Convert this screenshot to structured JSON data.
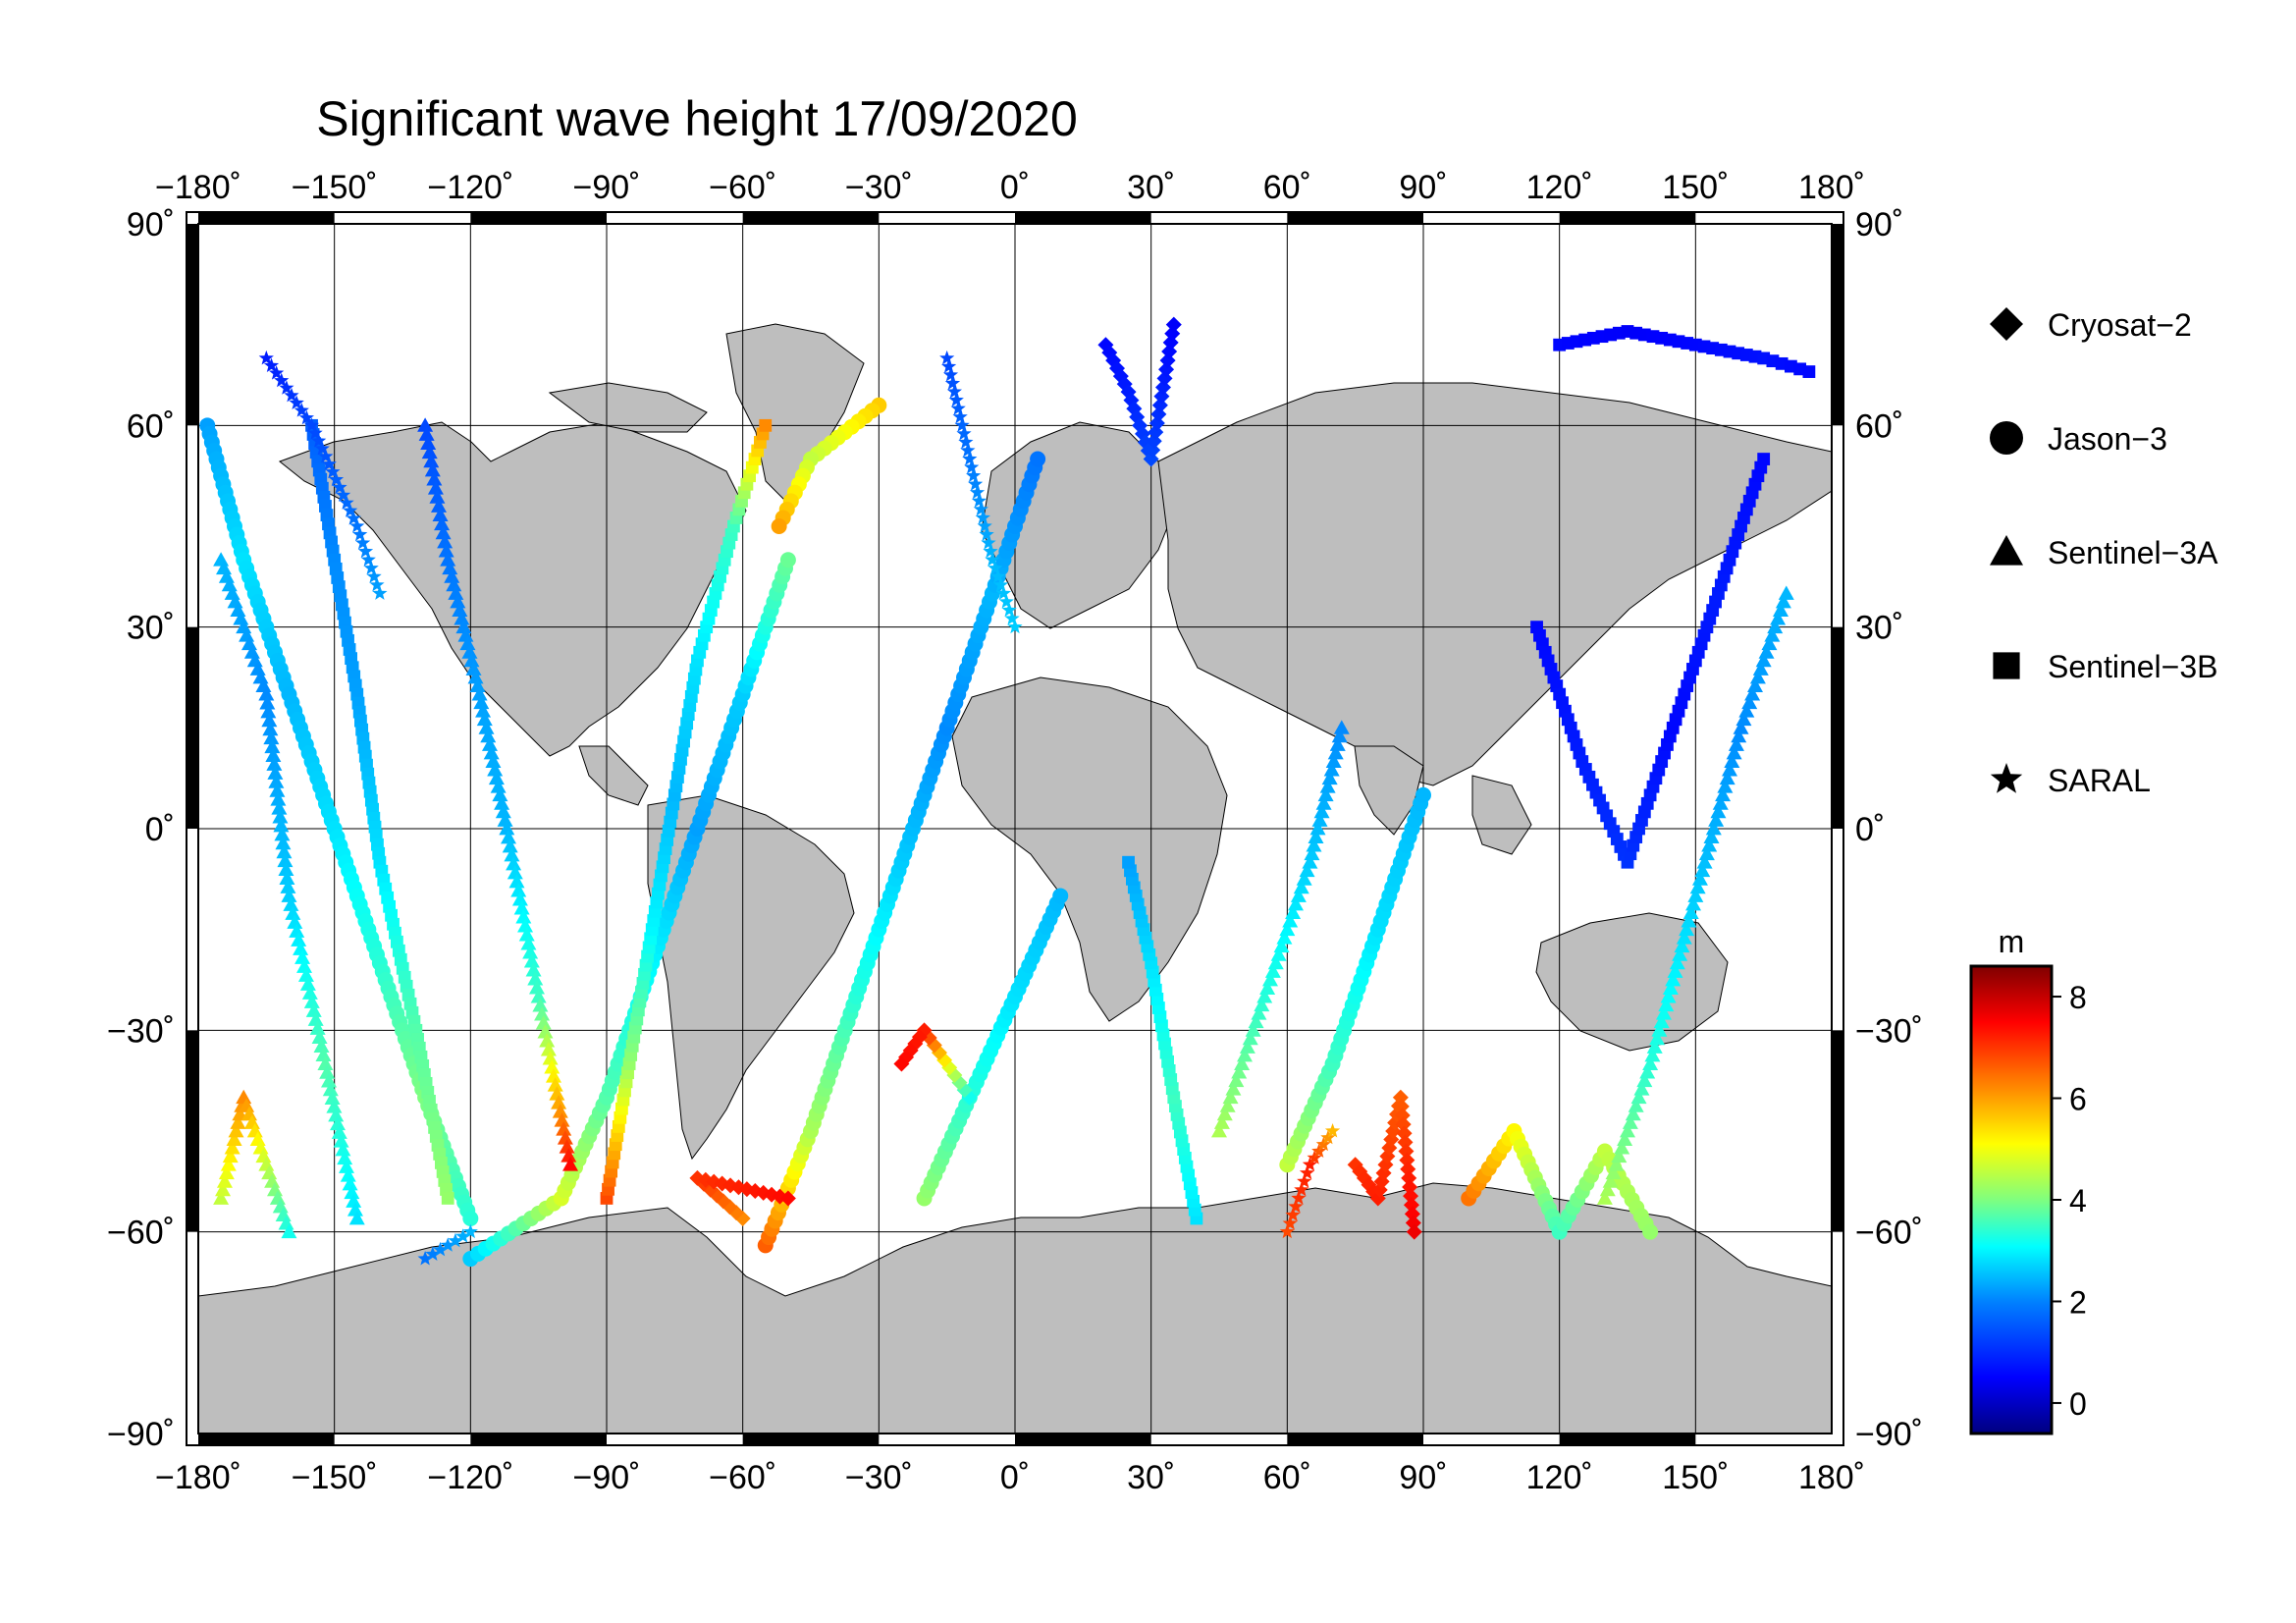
{
  "title": "Significant wave height 17/09/2020",
  "map": {
    "lon_ticks": [
      {
        "value": -180,
        "label": "−180˚"
      },
      {
        "value": -150,
        "label": "−150˚"
      },
      {
        "value": -120,
        "label": "−120˚"
      },
      {
        "value": -90,
        "label": "−90˚"
      },
      {
        "value": -60,
        "label": "−60˚"
      },
      {
        "value": -30,
        "label": "−30˚"
      },
      {
        "value": 0,
        "label": "0˚"
      },
      {
        "value": 30,
        "label": "30˚"
      },
      {
        "value": 60,
        "label": "60˚"
      },
      {
        "value": 90,
        "label": "90˚"
      },
      {
        "value": 120,
        "label": "120˚"
      },
      {
        "value": 150,
        "label": "150˚"
      },
      {
        "value": 180,
        "label": "180˚"
      }
    ],
    "lat_ticks": [
      {
        "value": 90,
        "left": "90˚",
        "right": "90˚"
      },
      {
        "value": 60,
        "left": "60˚",
        "right": "60˚"
      },
      {
        "value": 30,
        "left": "30˚",
        "right": "30˚"
      },
      {
        "value": 0,
        "left": "0˚",
        "right": "0˚"
      },
      {
        "value": -30,
        "left": "−30˚",
        "right": "−30˚"
      },
      {
        "value": -60,
        "left": "−60˚",
        "right": "−60˚"
      },
      {
        "value": -90,
        "left": "−90˚",
        "right": "−90˚"
      }
    ],
    "land_color": "#bebebe",
    "ocean_color": "#ffffff"
  },
  "legend": {
    "items": [
      {
        "label": "Cryosat−2",
        "symbol": "diamond"
      },
      {
        "label": "Jason−3",
        "symbol": "circle"
      },
      {
        "label": "Sentinel−3A",
        "symbol": "triangle"
      },
      {
        "label": "Sentinel−3B",
        "symbol": "square"
      },
      {
        "label": "SARAL",
        "symbol": "star"
      }
    ]
  },
  "colorbar": {
    "unit": "m",
    "min": -0.6,
    "max": 8.6,
    "ticks": [
      {
        "value": 0,
        "label": "0"
      },
      {
        "value": 2,
        "label": "2"
      },
      {
        "value": 4,
        "label": "4"
      },
      {
        "value": 6,
        "label": "6"
      },
      {
        "value": 8,
        "label": "8"
      }
    ],
    "colormap": [
      "#00007f",
      "#0000ff",
      "#007fff",
      "#00ffff",
      "#7fff7f",
      "#ffff00",
      "#ff7f00",
      "#ff0000",
      "#7f0000"
    ]
  },
  "chart_data": {
    "type": "scatter",
    "title": "Significant wave height 17/09/2020",
    "xlim": [
      -180,
      180
    ],
    "ylim": [
      -90,
      90
    ],
    "value_unit": "m",
    "tracks": [
      {
        "satellite": "Jason−3",
        "points": [
          [
            -178,
            60,
            2.0
          ],
          [
            -170,
            40,
            2.6
          ],
          [
            -160,
            20,
            2.2
          ],
          [
            -150,
            0,
            2.6
          ],
          [
            -140,
            -20,
            3.2
          ],
          [
            -130,
            -40,
            4.0
          ],
          [
            -120,
            -58,
            3.2
          ]
        ]
      },
      {
        "satellite": "Jason−3",
        "points": [
          [
            -120,
            -64,
            2.4
          ],
          [
            -100,
            -55,
            4.8
          ],
          [
            -90,
            -40,
            3.6
          ],
          [
            -80,
            -20,
            2.8
          ],
          [
            -70,
            0,
            2.0
          ],
          [
            -60,
            20,
            2.4
          ],
          [
            -50,
            40,
            3.8
          ]
        ]
      },
      {
        "satellite": "Jason−3",
        "points": [
          [
            -55,
            -62,
            6.6
          ],
          [
            -45,
            -45,
            4.4
          ],
          [
            -35,
            -25,
            3.2
          ],
          [
            -25,
            -5,
            2.4
          ],
          [
            -15,
            15,
            1.8
          ],
          [
            -5,
            35,
            2.2
          ],
          [
            5,
            55,
            1.6
          ]
        ]
      },
      {
        "satellite": "Jason−3",
        "points": [
          [
            -30,
            63,
            5.6
          ],
          [
            -45,
            55,
            4.6
          ],
          [
            -52,
            45,
            6.0
          ]
        ]
      },
      {
        "satellite": "Jason−3",
        "points": [
          [
            -20,
            -55,
            4.2
          ],
          [
            -10,
            -40,
            3.2
          ],
          [
            0,
            -25,
            2.6
          ],
          [
            10,
            -10,
            2.2
          ]
        ]
      },
      {
        "satellite": "Jason−3",
        "points": [
          [
            60,
            -50,
            4.6
          ],
          [
            70,
            -35,
            3.4
          ],
          [
            80,
            -15,
            2.6
          ],
          [
            90,
            5,
            2.2
          ]
        ]
      },
      {
        "satellite": "Jason−3",
        "points": [
          [
            100,
            -55,
            6.4
          ],
          [
            110,
            -45,
            5.2
          ],
          [
            120,
            -60,
            3.4
          ],
          [
            130,
            -48,
            4.6
          ],
          [
            140,
            -60,
            4.2
          ]
        ]
      },
      {
        "satellite": "Sentinel−3A",
        "points": [
          [
            -175,
            40,
            2.2
          ],
          [
            -165,
            20,
            1.8
          ],
          [
            -160,
            -10,
            2.4
          ],
          [
            -152,
            -35,
            3.6
          ],
          [
            -145,
            -58,
            2.6
          ]
        ]
      },
      {
        "satellite": "Sentinel−3A",
        "points": [
          [
            -130,
            60,
            1.2
          ],
          [
            -125,
            40,
            1.6
          ],
          [
            -118,
            20,
            2.0
          ],
          [
            -112,
            0,
            2.2
          ],
          [
            -105,
            -25,
            3.4
          ],
          [
            -98,
            -50,
            7.4
          ]
        ]
      },
      {
        "satellite": "Sentinel−3A",
        "points": [
          [
            -175,
            -55,
            4.6
          ],
          [
            -170,
            -40,
            6.2
          ],
          [
            -160,
            -60,
            3.0
          ]
        ]
      },
      {
        "satellite": "Sentinel−3A",
        "points": [
          [
            45,
            -45,
            4.4
          ],
          [
            55,
            -25,
            3.2
          ],
          [
            65,
            -5,
            2.4
          ],
          [
            72,
            15,
            1.8
          ]
        ]
      },
      {
        "satellite": "Sentinel−3A",
        "points": [
          [
            130,
            -55,
            4.4
          ],
          [
            140,
            -35,
            3.2
          ],
          [
            150,
            -10,
            2.4
          ],
          [
            160,
            15,
            1.8
          ],
          [
            170,
            35,
            2.2
          ]
        ]
      },
      {
        "satellite": "Sentinel−3B",
        "points": [
          [
            -155,
            60,
            1.4
          ],
          [
            -150,
            40,
            1.8
          ],
          [
            -145,
            20,
            2.0
          ],
          [
            -140,
            -5,
            2.6
          ],
          [
            -132,
            -30,
            3.6
          ],
          [
            -125,
            -55,
            4.2
          ]
        ]
      },
      {
        "satellite": "Sentinel−3B",
        "points": [
          [
            -90,
            -55,
            6.8
          ],
          [
            -85,
            -35,
            4.2
          ],
          [
            -80,
            -15,
            2.8
          ],
          [
            -75,
            5,
            2.2
          ],
          [
            -70,
            25,
            2.6
          ],
          [
            -62,
            45,
            3.4
          ],
          [
            -55,
            60,
            6.2
          ]
        ]
      },
      {
        "satellite": "Sentinel−3B",
        "points": [
          [
            40,
            -58,
            2.6
          ],
          [
            35,
            -40,
            3.4
          ],
          [
            30,
            -20,
            2.6
          ],
          [
            25,
            -5,
            2.0
          ]
        ]
      },
      {
        "satellite": "Sentinel−3B",
        "points": [
          [
            115,
            30,
            0.6
          ],
          [
            125,
            10,
            0.8
          ],
          [
            135,
            -5,
            1.0
          ],
          [
            145,
            15,
            0.6
          ],
          [
            155,
            35,
            0.8
          ],
          [
            165,
            55,
            0.6
          ]
        ]
      },
      {
        "satellite": "Sentinel−3B",
        "points": [
          [
            120,
            72,
            0.6
          ],
          [
            135,
            74,
            0.5
          ],
          [
            150,
            72,
            0.6
          ],
          [
            165,
            70,
            0.7
          ],
          [
            175,
            68,
            0.6
          ]
        ]
      },
      {
        "satellite": "Cryosat−2",
        "points": [
          [
            -10,
            -40,
            3.0
          ],
          [
            -20,
            -30,
            7.2
          ],
          [
            -25,
            -35,
            7.4
          ]
        ]
      },
      {
        "satellite": "Cryosat−2",
        "points": [
          [
            75,
            -50,
            7.0
          ],
          [
            80,
            -55,
            7.2
          ],
          [
            85,
            -40,
            6.6
          ],
          [
            88,
            -60,
            7.6
          ]
        ]
      },
      {
        "satellite": "Cryosat−2",
        "points": [
          [
            20,
            72,
            0.6
          ],
          [
            25,
            65,
            0.8
          ],
          [
            30,
            55,
            1.2
          ],
          [
            35,
            75,
            0.5
          ]
        ]
      },
      {
        "satellite": "Cryosat−2",
        "points": [
          [
            -60,
            -58,
            6.2
          ],
          [
            -70,
            -52,
            7.0
          ],
          [
            -50,
            -55,
            7.4
          ]
        ]
      },
      {
        "satellite": "SARAL",
        "points": [
          [
            -165,
            70,
            0.8
          ],
          [
            -155,
            60,
            1.2
          ],
          [
            -145,
            45,
            1.6
          ],
          [
            -140,
            35,
            2.0
          ]
        ]
      },
      {
        "satellite": "SARAL",
        "points": [
          [
            -15,
            70,
            1.2
          ],
          [
            -10,
            55,
            1.6
          ],
          [
            -5,
            40,
            2.2
          ],
          [
            0,
            30,
            2.4
          ]
        ]
      },
      {
        "satellite": "SARAL",
        "points": [
          [
            60,
            -60,
            6.8
          ],
          [
            65,
            -50,
            7.2
          ],
          [
            70,
            -45,
            5.8
          ]
        ]
      },
      {
        "satellite": "SARAL",
        "points": [
          [
            -130,
            -64,
            1.6
          ],
          [
            -120,
            -60,
            2.2
          ]
        ]
      }
    ]
  }
}
